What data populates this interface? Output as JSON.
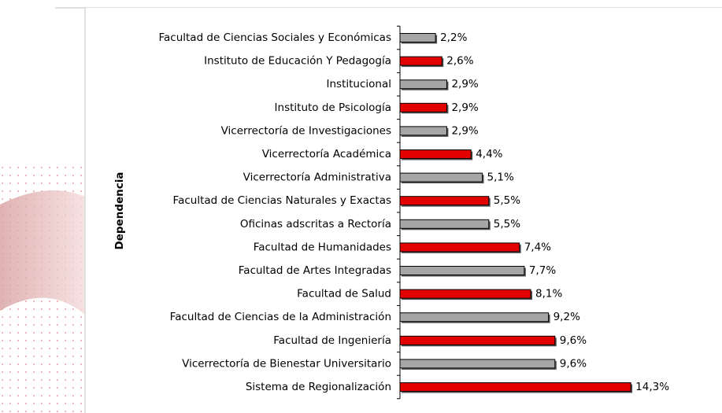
{
  "chart_data": {
    "type": "bar",
    "orientation": "horizontal",
    "y_label": "Dependencia",
    "categories": [
      "Facultad de Ciencias Sociales y Económicas",
      "Instituto de Educación Y Pedagogía",
      "Institucional",
      "Instituto de Psicología",
      "Vicerrectoría de Investigaciones",
      "Vicerrectoría Académica",
      "Vicerrectoría Administrativa",
      "Facultad de Ciencias Naturales y Exactas",
      "Oficinas adscritas a Rectoría",
      "Facultad de Humanidades",
      "Facultad de Artes Integradas",
      "Facultad de Salud",
      "Facultad de Ciencias de la Administración",
      "Facultad de Ingeniería",
      "Vicerrectoría de Bienestar Universitario",
      "Sistema de Regionalización"
    ],
    "values": [
      2.2,
      2.6,
      2.9,
      2.9,
      2.9,
      4.4,
      5.1,
      5.5,
      5.5,
      7.4,
      7.7,
      8.1,
      9.2,
      9.6,
      9.6,
      14.3
    ],
    "value_labels": [
      "2,2%",
      "2,6%",
      "2,9%",
      "2,9%",
      "2,9%",
      "4,4%",
      "5,1%",
      "5,5%",
      "5,5%",
      "7,4%",
      "7,7%",
      "8,1%",
      "9,2%",
      "9,6%",
      "9,6%",
      "14,3%"
    ],
    "colors": [
      "#a6a6a6",
      "#e30000",
      "#a6a6a6",
      "#e30000",
      "#a6a6a6",
      "#e30000",
      "#a6a6a6",
      "#e30000",
      "#a6a6a6",
      "#e30000",
      "#a6a6a6",
      "#e30000",
      "#a6a6a6",
      "#e30000",
      "#a6a6a6",
      "#e30000"
    ]
  }
}
